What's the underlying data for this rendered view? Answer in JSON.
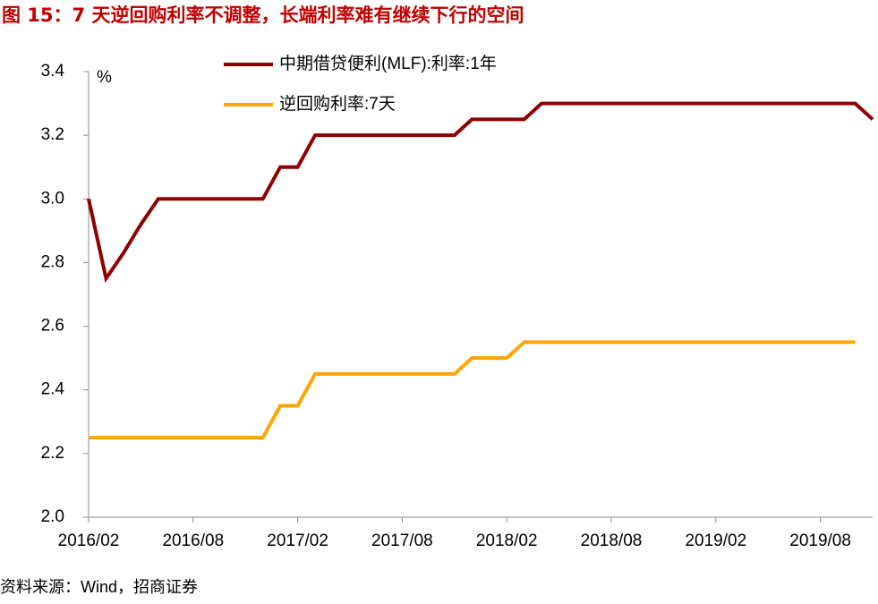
{
  "chart_data": {
    "type": "line",
    "title": "图 15：7 天逆回购利率不调整，长端利率难有继续下行的空间",
    "unit": "%",
    "source": "资料来源：Wind，招商证券",
    "x": [
      "2016/02",
      "2016/03",
      "2016/04",
      "2016/05",
      "2016/06",
      "2016/07",
      "2016/08",
      "2016/09",
      "2016/10",
      "2016/11",
      "2016/12",
      "2017/01",
      "2017/02",
      "2017/03",
      "2017/04",
      "2017/05",
      "2017/06",
      "2017/07",
      "2017/08",
      "2017/09",
      "2017/10",
      "2017/11",
      "2017/12",
      "2018/01",
      "2018/02",
      "2018/03",
      "2018/04",
      "2018/05",
      "2018/06",
      "2018/07",
      "2018/08",
      "2018/09",
      "2018/10",
      "2018/11",
      "2018/12",
      "2019/01",
      "2019/02",
      "2019/03",
      "2019/04",
      "2019/05",
      "2019/06",
      "2019/07",
      "2019/08",
      "2019/09",
      "2019/10",
      "2019/11"
    ],
    "series": [
      {
        "name": "中期借贷便利(MLF):利率:1年",
        "color": "#900000",
        "values": [
          3.0,
          2.75,
          2.83,
          2.92,
          3.0,
          3.0,
          3.0,
          3.0,
          3.0,
          3.0,
          3.0,
          3.1,
          3.1,
          3.2,
          3.2,
          3.2,
          3.2,
          3.2,
          3.2,
          3.2,
          3.2,
          3.2,
          3.25,
          3.25,
          3.25,
          3.25,
          3.3,
          3.3,
          3.3,
          3.3,
          3.3,
          3.3,
          3.3,
          3.3,
          3.3,
          3.3,
          3.3,
          3.3,
          3.3,
          3.3,
          3.3,
          3.3,
          3.3,
          3.3,
          3.3,
          3.25
        ]
      },
      {
        "name": "逆回购利率:7天",
        "color": "#ffa500",
        "values": [
          2.25,
          2.25,
          2.25,
          2.25,
          2.25,
          2.25,
          2.25,
          2.25,
          2.25,
          2.25,
          2.25,
          2.35,
          2.35,
          2.45,
          2.45,
          2.45,
          2.45,
          2.45,
          2.45,
          2.45,
          2.45,
          2.45,
          2.5,
          2.5,
          2.5,
          2.55,
          2.55,
          2.55,
          2.55,
          2.55,
          2.55,
          2.55,
          2.55,
          2.55,
          2.55,
          2.55,
          2.55,
          2.55,
          2.55,
          2.55,
          2.55,
          2.55,
          2.55,
          2.55,
          2.55,
          null
        ]
      }
    ],
    "xticks": [
      "2016/02",
      "2016/08",
      "2017/02",
      "2017/08",
      "2018/02",
      "2018/08",
      "2019/02",
      "2019/08"
    ],
    "ylim": [
      2.0,
      3.4
    ],
    "yticks": [
      {
        "value": 2.0,
        "label": "2.0"
      },
      {
        "value": 2.2,
        "label": "2.2"
      },
      {
        "value": 2.4,
        "label": "2.4"
      },
      {
        "value": 2.6,
        "label": "2.6"
      },
      {
        "value": 2.8,
        "label": "2.8"
      },
      {
        "value": 3.0,
        "label": "3.0"
      },
      {
        "value": 3.2,
        "label": "3.2"
      },
      {
        "value": 3.4,
        "label": "3.4"
      }
    ],
    "grid": false,
    "legend": "top"
  }
}
